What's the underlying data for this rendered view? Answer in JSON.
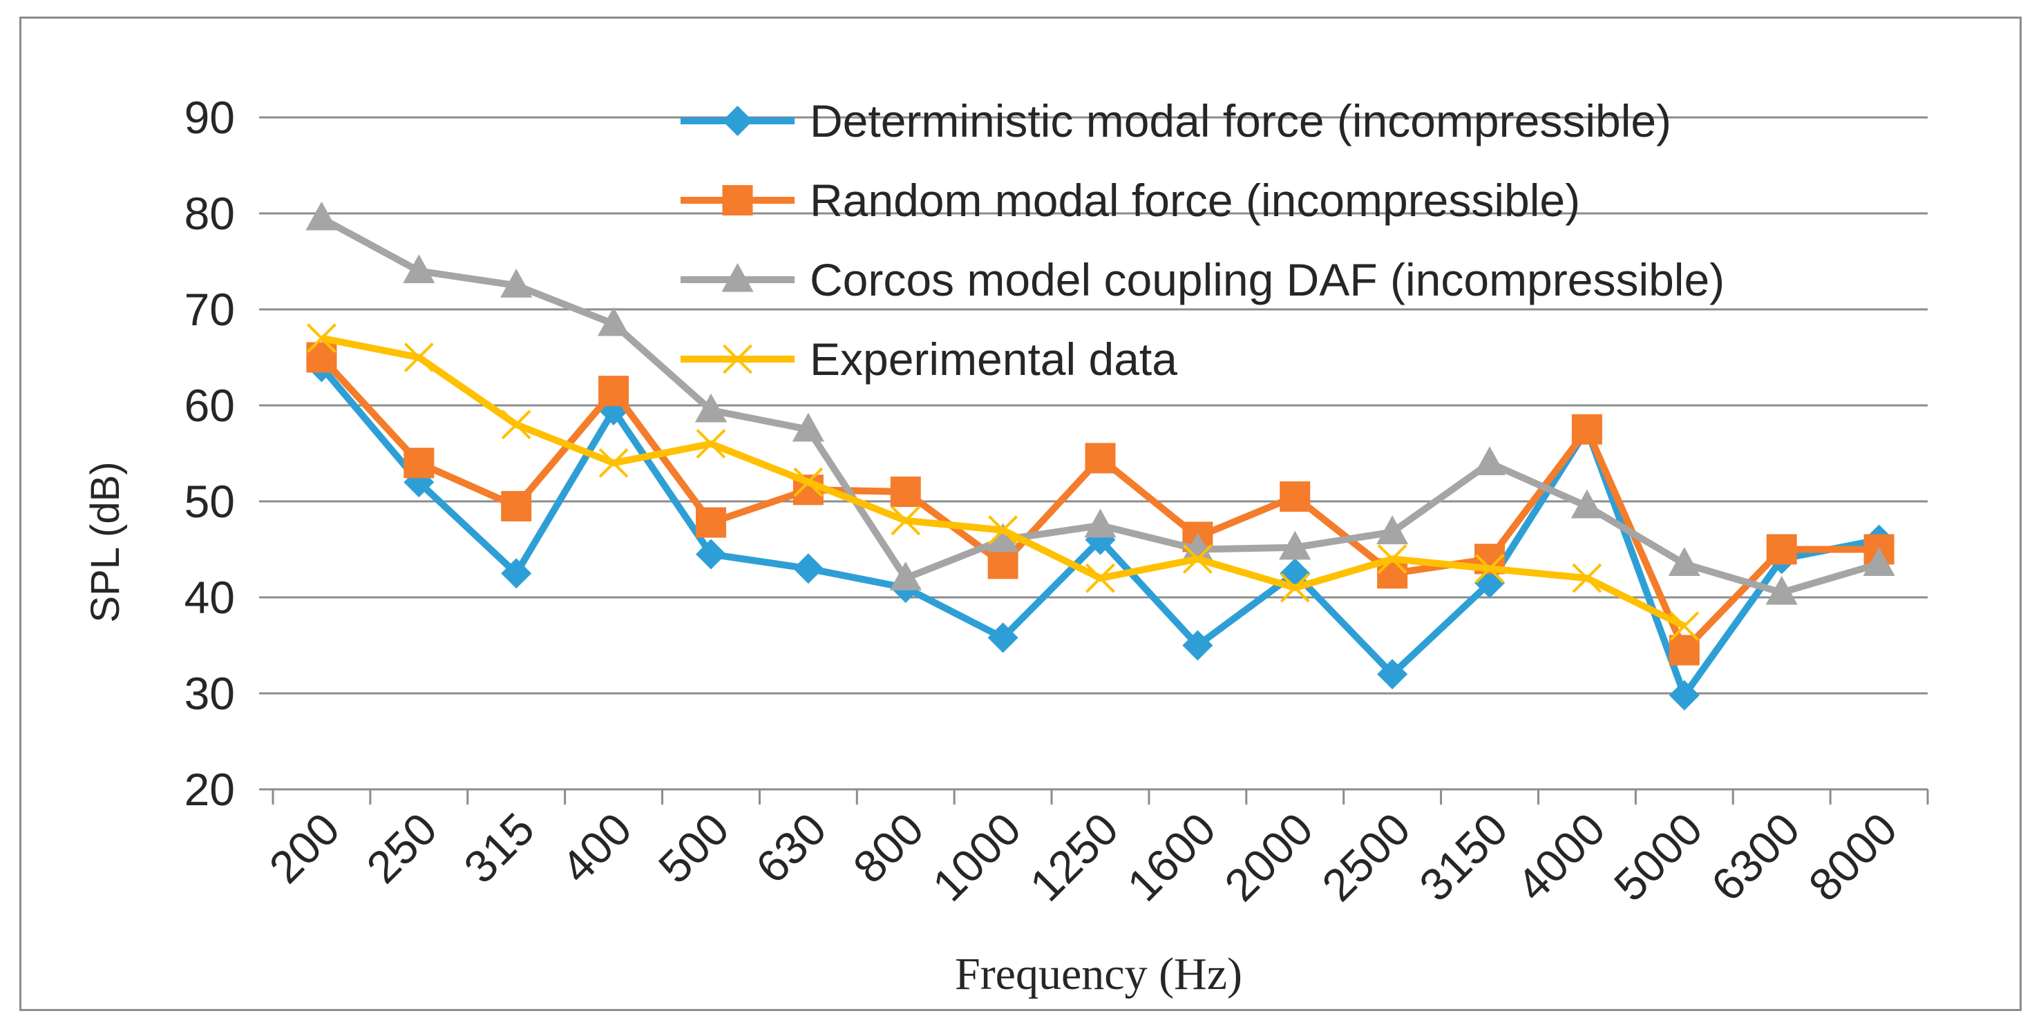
{
  "chart_data": {
    "type": "line",
    "xlabel": "Frequency (Hz)",
    "ylabel": "SPL (dB)",
    "ylim": [
      20,
      90
    ],
    "y_ticks": [
      "20",
      "30",
      "40",
      "50",
      "60",
      "70",
      "80",
      "90"
    ],
    "grid": "horizontal",
    "legend_position": "top-right",
    "categories": [
      "200",
      "250",
      "315",
      "400",
      "500",
      "630",
      "800",
      "1000",
      "1250",
      "1600",
      "2000",
      "2500",
      "3150",
      "4000",
      "5000",
      "6300",
      "8000"
    ],
    "series": [
      {
        "name": "Deterministic modal force (incompressible)",
        "color": "#2e9fd6",
        "marker": "diamond",
        "values": [
          64,
          52,
          42.5,
          59.5,
          44.5,
          43,
          41,
          35.8,
          46,
          35,
          42.5,
          32,
          41.5,
          57.5,
          29.8,
          44,
          46
        ]
      },
      {
        "name": "Random modal force (incompressible)",
        "color": "#f47c2b",
        "marker": "square",
        "values": [
          65,
          54,
          49.5,
          61.5,
          47.8,
          51.2,
          51,
          43.5,
          54.5,
          46.3,
          50.5,
          42.5,
          44,
          57.5,
          34.5,
          45,
          45
        ]
      },
      {
        "name": "Corcos model coupling DAF (incompressible)",
        "color": "#a5a5a5",
        "marker": "triangle",
        "values": [
          79.5,
          74,
          72.5,
          68.5,
          59.5,
          57.5,
          42,
          46,
          47.5,
          45,
          45.2,
          46.8,
          54,
          49.5,
          43.5,
          40.5,
          43.5
        ]
      },
      {
        "name": "Experimental data",
        "color": "#ffc000",
        "marker": "x",
        "values": [
          67,
          65,
          58,
          54,
          56,
          52,
          48,
          47,
          42,
          44,
          41,
          44,
          43,
          42,
          37,
          null,
          null
        ]
      }
    ]
  }
}
